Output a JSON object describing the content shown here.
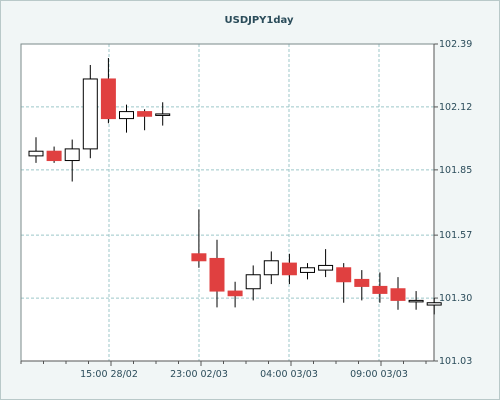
{
  "chart_data": {
    "type": "candlestick",
    "title": "USDJPY1day",
    "ylim": [
      101.03,
      102.39
    ],
    "y_ticks": [
      "102.39",
      "102.12",
      "101.85",
      "101.57",
      "101.30",
      "101.03"
    ],
    "x_ticks": [
      "15:00 28/02",
      "23:00 02/03",
      "04:00 03/03",
      "09:00 03/03"
    ],
    "grid": true,
    "colors": {
      "up": "#ffffff",
      "down": "#e04040",
      "wick": "#000000",
      "grid": "#9cc7c9"
    },
    "candles": [
      {
        "open": 101.91,
        "close": 101.93,
        "high": 101.99,
        "low": 101.88
      },
      {
        "open": 101.93,
        "close": 101.89,
        "high": 101.95,
        "low": 101.88
      },
      {
        "open": 101.89,
        "close": 101.94,
        "high": 101.98,
        "low": 101.8
      },
      {
        "open": 101.94,
        "close": 102.24,
        "high": 102.3,
        "low": 101.9
      },
      {
        "open": 102.24,
        "close": 102.07,
        "high": 102.33,
        "low": 102.05
      },
      {
        "open": 102.07,
        "close": 102.1,
        "high": 102.13,
        "low": 102.01
      },
      {
        "open": 102.1,
        "close": 102.08,
        "high": 102.11,
        "low": 102.02
      },
      {
        "open": 102.09,
        "close": 102.09,
        "high": 102.14,
        "low": 102.04
      },
      null,
      {
        "open": 101.49,
        "close": 101.46,
        "high": 101.68,
        "low": 101.43
      },
      {
        "open": 101.47,
        "close": 101.33,
        "high": 101.55,
        "low": 101.26
      },
      {
        "open": 101.33,
        "close": 101.31,
        "high": 101.37,
        "low": 101.26
      },
      {
        "open": 101.34,
        "close": 101.4,
        "high": 101.44,
        "low": 101.29
      },
      {
        "open": 101.4,
        "close": 101.46,
        "high": 101.5,
        "low": 101.36
      },
      {
        "open": 101.45,
        "close": 101.4,
        "high": 101.49,
        "low": 101.36
      },
      {
        "open": 101.41,
        "close": 101.43,
        "high": 101.45,
        "low": 101.38
      },
      {
        "open": 101.42,
        "close": 101.44,
        "high": 101.51,
        "low": 101.39
      },
      {
        "open": 101.43,
        "close": 101.37,
        "high": 101.45,
        "low": 101.28
      },
      {
        "open": 101.38,
        "close": 101.35,
        "high": 101.42,
        "low": 101.29
      },
      {
        "open": 101.35,
        "close": 101.32,
        "high": 101.41,
        "low": 101.28
      },
      {
        "open": 101.34,
        "close": 101.29,
        "high": 101.39,
        "low": 101.25
      },
      {
        "open": 101.29,
        "close": 101.29,
        "high": 101.33,
        "low": 101.25
      },
      {
        "open": 101.27,
        "close": 101.28,
        "high": 101.3,
        "low": 101.23
      }
    ]
  }
}
